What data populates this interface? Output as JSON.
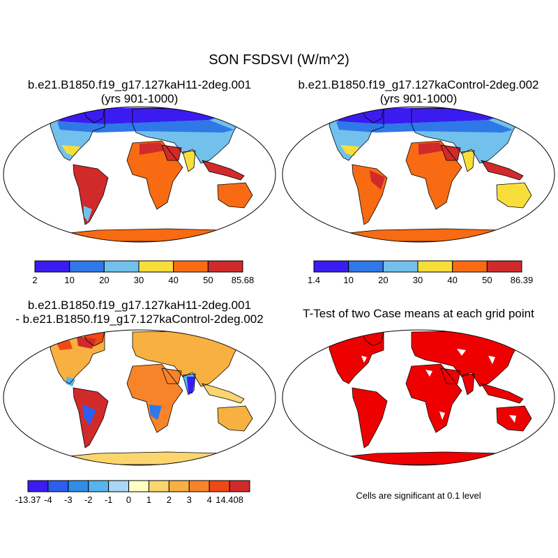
{
  "title": "SON FSDSVI (W/m^2)",
  "panels": [
    {
      "line1": "b.e21.B1850.f19_g17.127kaH11-2deg.001",
      "line2": "(yrs 901-1000)"
    },
    {
      "line1": "b.e21.B1850.f19_g17.127kaControl-2deg.002",
      "line2": "(yrs 901-1000)"
    },
    {
      "line1": "b.e21.B1850.f19_g17.127kaH11-2deg.001",
      "line2": "- b.e21.B1850.f19_g17.127kaControl-2deg.002"
    },
    {
      "line1": "T-Test of two Case means at each grid point",
      "line2": ""
    }
  ],
  "colorbars": [
    {
      "colors": [
        "#3b1cf0",
        "#2e78e8",
        "#72c0ec",
        "#f8de3a",
        "#f86b12",
        "#d12a2a"
      ],
      "labels": [
        "2",
        "10",
        "20",
        "30",
        "40",
        "50",
        "85.68"
      ]
    },
    {
      "colors": [
        "#3b1cf0",
        "#2e78e8",
        "#72c0ec",
        "#f8de3a",
        "#f86b12",
        "#d12a2a"
      ],
      "labels": [
        "1.4",
        "10",
        "20",
        "30",
        "40",
        "50",
        "86.39"
      ]
    },
    {
      "colors": [
        "#3b1cf0",
        "#2d5ef0",
        "#2f8ee8",
        "#57b4ee",
        "#a9d8f4",
        "#ffffc4",
        "#fbd56e",
        "#f8b040",
        "#f8842a",
        "#f04a14",
        "#d12a2a"
      ],
      "labels": [
        "-13.37",
        "-4",
        "-3",
        "-2",
        "-1",
        "0",
        "1",
        "2",
        "3",
        "4",
        "14.408"
      ]
    }
  ],
  "significance_note": "Cells are significant at 0.1 level",
  "colors": {
    "ocean": "#ffffff",
    "significant": "#ee0000",
    "coast": "#000000"
  }
}
